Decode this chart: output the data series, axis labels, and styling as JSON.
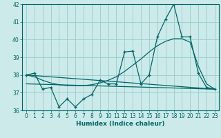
{
  "xlabel": "Humidex (Indice chaleur)",
  "bg_color": "#cceaea",
  "grid_color": "#99cccc",
  "line_color": "#006666",
  "xlim": [
    -0.5,
    23.5
  ],
  "ylim": [
    36,
    42
  ],
  "xticks": [
    0,
    1,
    2,
    3,
    4,
    5,
    6,
    7,
    8,
    9,
    10,
    11,
    12,
    13,
    14,
    15,
    16,
    17,
    18,
    19,
    20,
    21,
    22,
    23
  ],
  "yticks": [
    36,
    37,
    38,
    39,
    40,
    41,
    42
  ],
  "main_x": [
    0,
    1,
    2,
    3,
    4,
    5,
    6,
    7,
    8,
    9,
    10,
    11,
    12,
    13,
    14,
    15,
    16,
    17,
    18,
    19,
    20,
    21,
    22,
    23
  ],
  "main_y": [
    38,
    38.1,
    37.2,
    37.3,
    36.2,
    36.65,
    36.2,
    36.65,
    36.9,
    37.7,
    37.5,
    37.5,
    39.3,
    39.35,
    37.5,
    38.0,
    40.15,
    41.15,
    42.0,
    40.15,
    40.15,
    38.1,
    37.3,
    37.2
  ],
  "trend1_x": [
    0,
    23
  ],
  "trend1_y": [
    38.0,
    37.2
  ],
  "trend2_x": [
    0,
    23
  ],
  "trend2_y": [
    37.5,
    37.2
  ],
  "smooth_x": [
    0,
    1,
    2,
    3,
    4,
    5,
    6,
    7,
    8,
    9,
    10,
    11,
    12,
    13,
    14,
    15,
    16,
    17,
    18,
    19,
    20,
    21,
    22,
    23
  ],
  "smooth_y": [
    38.0,
    37.9,
    37.7,
    37.55,
    37.45,
    37.4,
    37.4,
    37.4,
    37.45,
    37.55,
    37.7,
    37.9,
    38.2,
    38.55,
    38.9,
    39.3,
    39.65,
    39.9,
    40.05,
    40.05,
    39.85,
    38.5,
    37.5,
    37.2
  ]
}
